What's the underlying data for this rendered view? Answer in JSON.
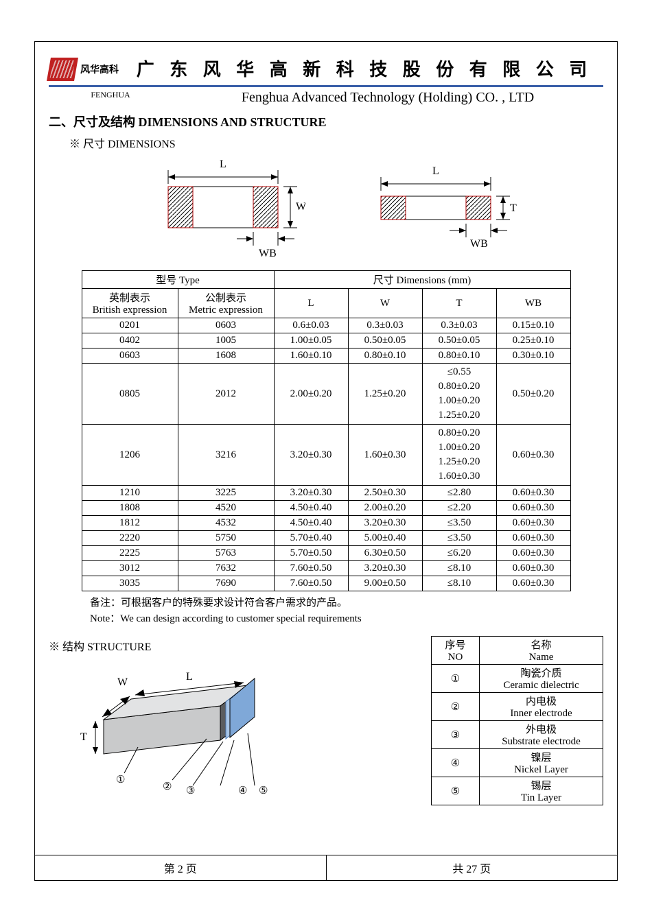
{
  "header": {
    "logo_text": "风华高科",
    "title_cn": "广 东 风 华 高 新 科 技 股 份 有 限 公 司",
    "fenghua_small": "FENGHUA",
    "title_en": "Fenghua Advanced Technology (Holding) CO. , LTD"
  },
  "section": {
    "title": "二、尺寸及结构  DIMENSIONS AND STRUCTURE",
    "dims_label": "※ 尺寸 DIMENSIONS",
    "structure_label": "※ 结构 STRUCTURE"
  },
  "diagram_labels": {
    "L": "L",
    "W": "W",
    "T": "T",
    "WB": "WB"
  },
  "dim_table": {
    "hdr_type": "型号 Type",
    "hdr_dims": "尺寸    Dimensions    (mm)",
    "hdr_british_cn": "英制表示",
    "hdr_british_en": "British expression",
    "hdr_metric_cn": "公制表示",
    "hdr_metric_en": "Metric expression",
    "col_L": "L",
    "col_W": "W",
    "col_T": "T",
    "col_WB": "WB",
    "rows": [
      {
        "b": "0201",
        "m": "0603",
        "L": "0.6±0.03",
        "W": "0.3±0.03",
        "T": "0.3±0.03",
        "WB": "0.15±0.10"
      },
      {
        "b": "0402",
        "m": "1005",
        "L": "1.00±0.05",
        "W": "0.50±0.05",
        "T": "0.50±0.05",
        "WB": "0.25±0.10"
      },
      {
        "b": "0603",
        "m": "1608",
        "L": "1.60±0.10",
        "W": "0.80±0.10",
        "T": "0.80±0.10",
        "WB": "0.30±0.10"
      },
      {
        "b": "0805",
        "m": "2012",
        "L": "2.00±0.20",
        "W": "1.25±0.20",
        "T": "≤0.55\n0.80±0.20\n1.00±0.20\n1.25±0.20",
        "WB": "0.50±0.20"
      },
      {
        "b": "1206",
        "m": "3216",
        "L": "3.20±0.30",
        "W": "1.60±0.30",
        "T": "0.80±0.20\n1.00±0.20\n1.25±0.20\n1.60±0.30",
        "WB": "0.60±0.30"
      },
      {
        "b": "1210",
        "m": "3225",
        "L": "3.20±0.30",
        "W": "2.50±0.30",
        "T": "≤2.80",
        "WB": "0.60±0.30"
      },
      {
        "b": "1808",
        "m": "4520",
        "L": "4.50±0.40",
        "W": "2.00±0.20",
        "T": "≤2.20",
        "WB": "0.60±0.30"
      },
      {
        "b": "1812",
        "m": "4532",
        "L": "4.50±0.40",
        "W": "3.20±0.30",
        "T": "≤3.50",
        "WB": "0.60±0.30"
      },
      {
        "b": "2220",
        "m": "5750",
        "L": "5.70±0.40",
        "W": "5.00±0.40",
        "T": "≤3.50",
        "WB": "0.60±0.30"
      },
      {
        "b": "2225",
        "m": "5763",
        "L": "5.70±0.50",
        "W": "6.30±0.50",
        "T": "≤6.20",
        "WB": "0.60±0.30"
      },
      {
        "b": "3012",
        "m": "7632",
        "L": "7.60±0.50",
        "W": "3.20±0.30",
        "T": "≤8.10",
        "WB": "0.60±0.30"
      },
      {
        "b": "3035",
        "m": "7690",
        "L": "7.60±0.50",
        "W": "9.00±0.50",
        "T": "≤8.10",
        "WB": "0.60±0.30"
      }
    ]
  },
  "notes": {
    "cn": "备注：可根据客户的特殊要求设计符合客户需求的产品。",
    "en": "Note：We can design according to customer special requirements"
  },
  "structure_table": {
    "hdr_no_cn": "序号",
    "hdr_no_en": "NO",
    "hdr_name_cn": "名称",
    "hdr_name_en": "Name",
    "rows": [
      {
        "no": "①",
        "cn": "陶瓷介质",
        "en": "Ceramic  dielectric"
      },
      {
        "no": "②",
        "cn": "内电极",
        "en": "Inner  electrode"
      },
      {
        "no": "③",
        "cn": "外电极",
        "en": "Substrate  electrode"
      },
      {
        "no": "④",
        "cn": "镍层",
        "en": "Nickel Layer"
      },
      {
        "no": "⑤",
        "cn": "锡层",
        "en": "Tin Layer"
      }
    ]
  },
  "struct_diagram": {
    "W": "W",
    "L": "L",
    "T": "T",
    "n1": "①",
    "n2": "②",
    "n3": "③",
    "n4": "④",
    "n5": "⑤"
  },
  "footer": {
    "page_label_l": "第  2  页",
    "page_label_r": "共  27  页"
  },
  "colors": {
    "accent": "#3a5fa8",
    "logo": "#c02020",
    "hatch_border": "#b00000",
    "struct_body": "#c9cacb",
    "struct_end_dark": "#5b5d60",
    "struct_end_light": "#a8c6e8",
    "struct_edge": "#4a78b5"
  }
}
